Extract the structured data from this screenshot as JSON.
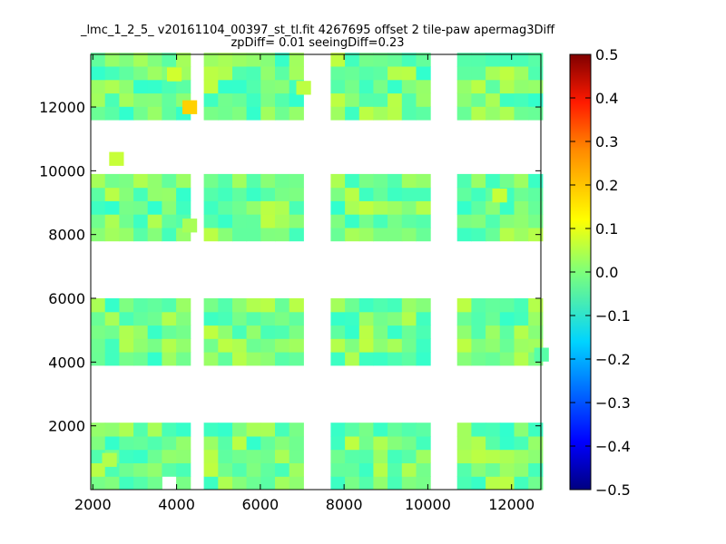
{
  "chart_data": {
    "type": "heatmap",
    "title_line1": "_lmc_1_2_5_ v20161104_00397_st_tl.fit 4267695 offset 2 tile-paw apermag3Diff",
    "title_line2": "zpDiff= 0.01 seeingDiff=0.23",
    "xlim": [
      1950,
      12700
    ],
    "ylim": [
      0,
      13650
    ],
    "x_ticks": [
      2000,
      4000,
      6000,
      8000,
      10000,
      12000
    ],
    "x_tick_labels": [
      "2000",
      "4000",
      "6000",
      "8000",
      "10000",
      "12000"
    ],
    "y_ticks": [
      2000,
      4000,
      6000,
      8000,
      10000,
      12000
    ],
    "y_tick_labels": [
      "2000",
      "4000",
      "6000",
      "8000",
      "10000",
      "12000"
    ],
    "colorbar": {
      "colormap": "jet",
      "vmin": -0.5,
      "vmax": 0.5,
      "ticks": [
        0.5,
        0.4,
        0.3,
        0.2,
        0.1,
        0.0,
        -0.1,
        -0.2,
        -0.3,
        -0.4,
        -0.5
      ],
      "tick_labels": [
        "0.5",
        "0.4",
        "0.3",
        "0.2",
        "0.1",
        "0.0",
        "−0.1",
        "−0.2",
        "−0.3",
        "−0.4",
        "−0.5"
      ]
    },
    "cell_size": [
      340,
      420
    ],
    "columns": {
      "group1": [
        1950,
        2290,
        2630,
        2970,
        3310,
        3650,
        3990
      ],
      "group2": [
        4650,
        4990,
        5330,
        5670,
        6010,
        6350,
        6690
      ],
      "group3": [
        7680,
        8020,
        8360,
        8700,
        9040,
        9380,
        9720
      ],
      "group4": [
        10700,
        11040,
        11380,
        11720,
        12060,
        12400
      ]
    },
    "row_bands": [
      {
        "name": "band1",
        "y_bottom": 0,
        "rows": 5
      },
      {
        "name": "band2",
        "y_bottom": 3900,
        "rows": 5
      },
      {
        "name": "band3",
        "y_bottom": 7800,
        "rows": 5
      },
      {
        "name": "band4",
        "y_bottom": 11600,
        "rows": 5
      }
    ],
    "note_cells": [
      {
        "x": 4140,
        "y": 11790,
        "value": 0.17
      },
      {
        "x": 2390,
        "y": 10170,
        "value": 0.07
      },
      {
        "x": 3770,
        "y": 12820,
        "value": 0.08
      },
      {
        "x": 6860,
        "y": 12400,
        "value": 0.06
      },
      {
        "x": 11540,
        "y": 9020,
        "value": 0.07
      },
      {
        "x": 4140,
        "y": 8080,
        "value": 0.04
      },
      {
        "x": 2220,
        "y": 730,
        "value": 0.05
      },
      {
        "x": 12540,
        "y": 4030,
        "value": -0.04
      }
    ]
  }
}
